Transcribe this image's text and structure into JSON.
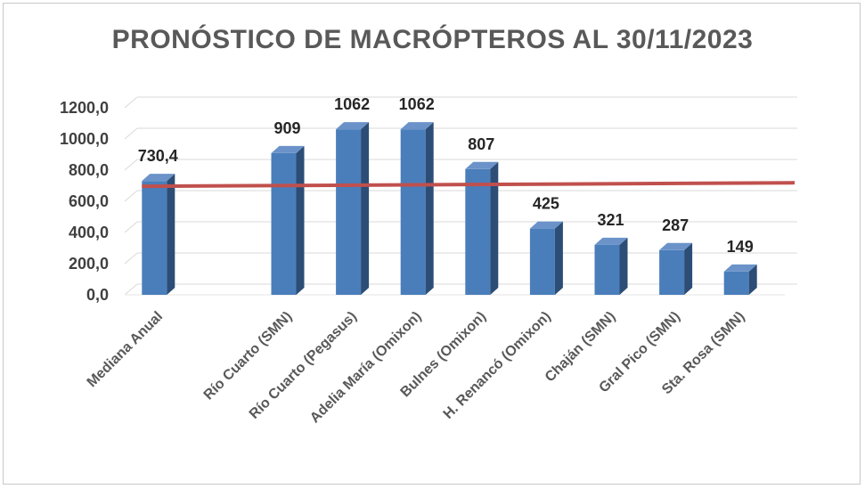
{
  "chart_data": {
    "type": "bar",
    "title": "PRONÓSTICO DE MACRÓPTEROS AL 30/11/2023",
    "categories": [
      "Mediana Anual",
      "",
      "Río Cuarto (SMN)",
      "Río Cuarto (Pegasus)",
      "Adelia María (Omixon)",
      "Bulnes (Omixon)",
      "H. Renancó (Omixon)",
      "Chaján (SMN)",
      "Gral Pico (SMN)",
      "Sta. Rosa (SMN)"
    ],
    "values": [
      730.4,
      null,
      909,
      1062,
      1062,
      807,
      425,
      321,
      287,
      149
    ],
    "data_labels": [
      "730,4",
      "",
      "909",
      "1062",
      "1062",
      "807",
      "425",
      "321",
      "287",
      "149"
    ],
    "reference_line": {
      "value": 730.4
    },
    "ylim": [
      0,
      1200
    ],
    "yticks": [
      "0,0",
      "200,0",
      "400,0",
      "600,0",
      "800,0",
      "1000,0",
      "1200,0"
    ],
    "grid": true,
    "bar_style": "3d",
    "colors": {
      "bar_front": "#4a7ebb",
      "bar_side": "#2c4d75",
      "bar_top": "#6b93c9",
      "reference_line": "#c0504d",
      "grid": "#d9d9d9"
    }
  }
}
